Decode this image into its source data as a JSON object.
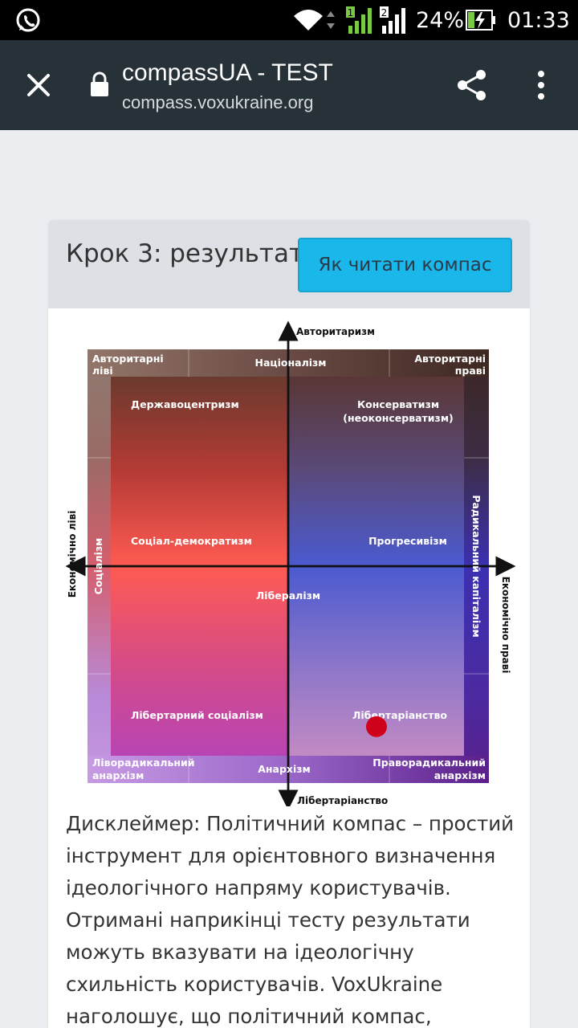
{
  "status_bar": {
    "battery": "24%",
    "time": "01:33",
    "sim1": "1",
    "sim2": "2"
  },
  "browser": {
    "title": "compassUA - TEST",
    "url": "compass.voxukraine.org",
    "icons": [
      "close-icon",
      "lock-icon",
      "share-icon",
      "more-vert-icon"
    ]
  },
  "card": {
    "step_title": "Крок 3: результат",
    "how_to_read_button": "Як читати компас"
  },
  "compass": {
    "axis_top": "Авторитаризм",
    "axis_bottom": "Лібертаріанство",
    "axis_left": "Економічно ліві",
    "axis_right": "Економічно праві",
    "corner_top_left": [
      "Авторитарні",
      "ліві"
    ],
    "edge_top": "Націоналізм",
    "corner_top_right": [
      "Авторитарні",
      "праві"
    ],
    "edge_left": "Соціалізм",
    "edge_right": "Радикальний капіталізм",
    "corner_bottom_left": [
      "Ліворадикальний",
      "анархізм"
    ],
    "edge_bottom": "Анархізм",
    "corner_bottom_right": [
      "Праворадикальний",
      "анархізм"
    ],
    "ideologies": {
      "statocentrism": "Державоцентризм",
      "conservatism": [
        "Консерватизм",
        "(неоконсерватизм)"
      ],
      "social_democracy": "Соціал-демократизм",
      "progressivism": "Прогресивізм",
      "liberalism": "Лібералізм",
      "libertarian_socialism": "Лібертарний соціалізм",
      "libertarianism": "Лібертаріанство"
    },
    "result_marker": {
      "economic_x": 0.44,
      "social_y": -0.74,
      "color": "#d0021b"
    }
  },
  "disclaimer": "Дисклеймер: Політичний компас – простий інструмент для орієнтовного визначення ідеологічного напряму користувачів. Отримані наприкінці тесту результати можуть вказувати на ідеологічну схильність користувачів. VoxUkraine наголошує, що політичний компас, розташування ідеологій"
}
